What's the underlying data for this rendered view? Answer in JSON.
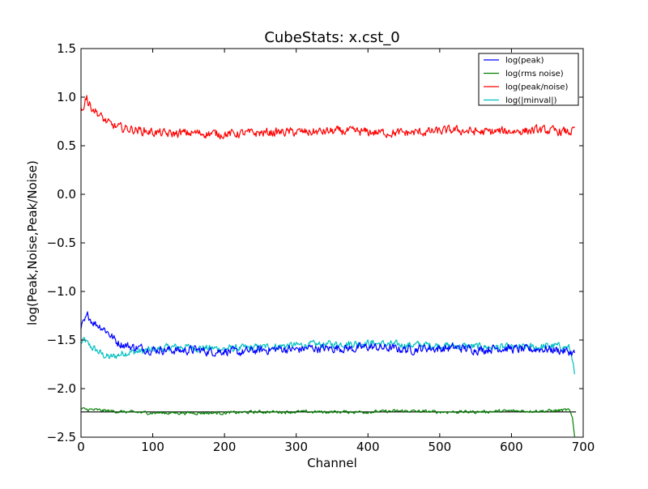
{
  "chart_data": {
    "type": "line",
    "title": "CubeStats: x.cst_0",
    "xlabel": "Channel",
    "ylabel": "log(Peak,Noise,Peak/Noise)",
    "xlim": [
      0,
      700
    ],
    "ylim": [
      -2.5,
      1.5
    ],
    "xticks": [
      "0",
      "100",
      "200",
      "300",
      "400",
      "500",
      "600",
      "700"
    ],
    "yticks": [
      "1.5",
      "1.0",
      "0.5",
      "0.0",
      "−0.5",
      "−1.0",
      "−1.5",
      "−2.0",
      "−2.5"
    ],
    "grid": false,
    "legend_position": "top-right",
    "n_channels": 690,
    "series": [
      {
        "name": "log(peak)",
        "color": "#0000ff",
        "x": [
          0,
          2,
          5,
          8,
          10,
          15,
          20,
          25,
          30,
          35,
          40,
          45,
          50,
          60,
          70,
          80,
          90,
          100,
          120,
          140,
          160,
          180,
          200,
          220,
          240,
          260,
          280,
          300,
          320,
          340,
          360,
          380,
          400,
          420,
          440,
          460,
          480,
          500,
          520,
          540,
          560,
          580,
          600,
          620,
          640,
          660,
          680,
          688
        ],
        "y": [
          -1.38,
          -1.35,
          -1.32,
          -1.27,
          -1.24,
          -1.3,
          -1.33,
          -1.35,
          -1.37,
          -1.4,
          -1.44,
          -1.48,
          -1.52,
          -1.55,
          -1.57,
          -1.58,
          -1.59,
          -1.6,
          -1.6,
          -1.61,
          -1.6,
          -1.62,
          -1.61,
          -1.63,
          -1.61,
          -1.6,
          -1.59,
          -1.6,
          -1.58,
          -1.59,
          -1.58,
          -1.59,
          -1.57,
          -1.58,
          -1.59,
          -1.6,
          -1.58,
          -1.59,
          -1.58,
          -1.59,
          -1.6,
          -1.58,
          -1.59,
          -1.6,
          -1.59,
          -1.6,
          -1.62,
          -1.64
        ],
        "amp": 0.07
      },
      {
        "name": "log(rms noise)",
        "color": "#008000",
        "x": [
          0,
          20,
          40,
          60,
          100,
          150,
          200,
          250,
          300,
          350,
          400,
          450,
          500,
          550,
          600,
          650,
          680,
          685,
          688
        ],
        "y": [
          -2.21,
          -2.22,
          -2.23,
          -2.24,
          -2.25,
          -2.25,
          -2.25,
          -2.24,
          -2.24,
          -2.24,
          -2.24,
          -2.23,
          -2.24,
          -2.24,
          -2.23,
          -2.23,
          -2.22,
          -2.3,
          -2.48
        ],
        "amp": 0.025
      },
      {
        "name": "log(peak/noise)",
        "color": "#ff0000",
        "x": [
          0,
          2,
          5,
          8,
          10,
          15,
          20,
          30,
          40,
          50,
          60,
          80,
          100,
          120,
          140,
          160,
          200,
          240,
          280,
          320,
          360,
          400,
          440,
          480,
          520,
          560,
          600,
          640,
          660,
          680,
          688
        ],
        "y": [
          0.88,
          0.85,
          0.95,
          1.03,
          0.93,
          0.9,
          0.86,
          0.78,
          0.72,
          0.69,
          0.68,
          0.66,
          0.64,
          0.62,
          0.63,
          0.63,
          0.62,
          0.63,
          0.64,
          0.64,
          0.65,
          0.64,
          0.63,
          0.64,
          0.66,
          0.64,
          0.65,
          0.66,
          0.65,
          0.64,
          0.66
        ],
        "amp": 0.07
      },
      {
        "name": "log(|minval|)",
        "color": "#00bfbf",
        "x": [
          0,
          5,
          10,
          20,
          30,
          40,
          50,
          60,
          80,
          100,
          120,
          140,
          160,
          200,
          240,
          280,
          320,
          360,
          400,
          440,
          480,
          520,
          560,
          600,
          640,
          660,
          680,
          685,
          688
        ],
        "y": [
          -1.53,
          -1.5,
          -1.55,
          -1.6,
          -1.65,
          -1.68,
          -1.66,
          -1.63,
          -1.62,
          -1.6,
          -1.58,
          -1.57,
          -1.58,
          -1.59,
          -1.58,
          -1.56,
          -1.55,
          -1.54,
          -1.53,
          -1.55,
          -1.55,
          -1.56,
          -1.57,
          -1.58,
          -1.57,
          -1.56,
          -1.58,
          -1.68,
          -1.88
        ],
        "amp": 0.06
      },
      {
        "name": "",
        "color": "#000000",
        "x": [
          0,
          690
        ],
        "y": [
          -2.24,
          -2.24
        ],
        "amp": 0
      }
    ]
  }
}
